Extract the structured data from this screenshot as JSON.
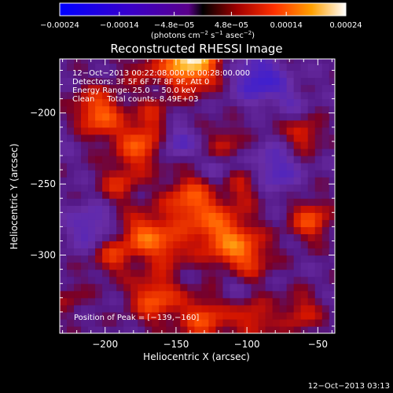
{
  "chart_data": {
    "type": "heatmap",
    "title": "Reconstructed RHESSI Image",
    "xlabel": "Heliocentric X (arcsec)",
    "ylabel": "Heliocentric Y (arcsec)",
    "xlim": [
      -232,
      -38
    ],
    "ylim": [
      -355,
      -162
    ],
    "x_ticks": [
      -200,
      -150,
      -100,
      -50
    ],
    "y_ticks": [
      -200,
      -250,
      -300
    ],
    "x_tick_labels": [
      "−200",
      "−150",
      "−100",
      "−50"
    ],
    "y_tick_labels": [
      "−200",
      "−250",
      "−300"
    ],
    "colorbar": {
      "range": [
        -0.00024,
        0.00024
      ],
      "ticks": [
        -0.00024,
        -0.00014,
        -4.8e-05,
        4.8e-05,
        0.00014,
        0.00024
      ],
      "tick_labels": [
        "−0.00024",
        "−0.00014",
        "−4.8e−05",
        "4.8e−05",
        "0.00014",
        "0.00024"
      ],
      "units_text": "(photons cm",
      "units_exp1": "−2",
      "units_mid": " s",
      "units_exp2": "−1",
      "units_tail": " asec",
      "units_exp3": "−2",
      "units_close": ")"
    },
    "annotations": {
      "line1": "12−Oct−2013 00:22:08.000 to 00:28:00.000",
      "line2": "Detectors: 3F 5F 6F 7F 8F 9F, Att 0",
      "line3": "Energy Range: 25.0 − 50.0 keV",
      "line4": "Clean     Total counts: 8.49E+03",
      "peak": "Position of Peak = [−139,−160]"
    },
    "peak_position": [
      -139,
      -160
    ],
    "features": [
      {
        "x": -140,
        "y": -162,
        "v": 1.0,
        "r": 14
      },
      {
        "x": -205,
        "y": -200,
        "v": 0.6,
        "r": 12
      },
      {
        "x": -175,
        "y": -222,
        "v": 0.55,
        "r": 12
      },
      {
        "x": -190,
        "y": -250,
        "v": 0.35,
        "r": 10
      },
      {
        "x": -172,
        "y": -285,
        "v": 0.55,
        "r": 11
      },
      {
        "x": -195,
        "y": -300,
        "v": 0.4,
        "r": 10
      },
      {
        "x": -155,
        "y": -295,
        "v": 0.35,
        "r": 10
      },
      {
        "x": -140,
        "y": -262,
        "v": 0.55,
        "r": 13
      },
      {
        "x": -118,
        "y": -285,
        "v": 0.55,
        "r": 14
      },
      {
        "x": -100,
        "y": -300,
        "v": 0.45,
        "r": 12
      },
      {
        "x": -165,
        "y": -330,
        "v": 0.55,
        "r": 12
      },
      {
        "x": -130,
        "y": -345,
        "v": 0.5,
        "r": 12
      },
      {
        "x": -95,
        "y": -345,
        "v": 0.4,
        "r": 10
      },
      {
        "x": -100,
        "y": -250,
        "v": 0.35,
        "r": 10
      },
      {
        "x": -115,
        "y": -220,
        "v": 0.3,
        "r": 9
      },
      {
        "x": -80,
        "y": -200,
        "v": 0.3,
        "r": 9
      },
      {
        "x": -60,
        "y": -215,
        "v": 0.4,
        "r": 9
      },
      {
        "x": -55,
        "y": -275,
        "v": 0.5,
        "r": 10
      },
      {
        "x": -62,
        "y": -340,
        "v": 0.35,
        "r": 10
      },
      {
        "x": -175,
        "y": -170,
        "v": 0.25,
        "r": 9
      },
      {
        "x": -165,
        "y": -200,
        "v": 0.25,
        "r": 8
      },
      {
        "x": -225,
        "y": -330,
        "v": 0.2,
        "r": 9
      },
      {
        "x": -150,
        "y": -220,
        "v": -0.35,
        "r": 9
      },
      {
        "x": -92,
        "y": -175,
        "v": -0.5,
        "r": 12
      },
      {
        "x": -75,
        "y": -195,
        "v": -0.35,
        "r": 10
      },
      {
        "x": -210,
        "y": -280,
        "v": -0.35,
        "r": 11
      },
      {
        "x": -82,
        "y": -240,
        "v": -0.4,
        "r": 12
      },
      {
        "x": -120,
        "y": -240,
        "v": -0.2,
        "r": 8
      },
      {
        "x": -225,
        "y": -215,
        "v": -0.1,
        "r": 8
      },
      {
        "x": -110,
        "y": -320,
        "v": -0.15,
        "r": 8
      }
    ]
  },
  "timestamp": "12−Oct−2013 03:13"
}
